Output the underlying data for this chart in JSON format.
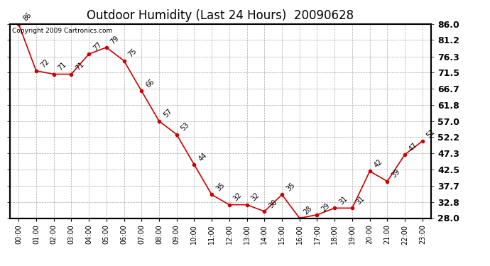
{
  "title": "Outdoor Humidity (Last 24 Hours)  20090628",
  "copyright": "Copyright 2009 Cartronics.com",
  "hours": [
    "00:00",
    "01:00",
    "02:00",
    "03:00",
    "04:00",
    "05:00",
    "06:00",
    "07:00",
    "08:00",
    "09:00",
    "10:00",
    "11:00",
    "12:00",
    "13:00",
    "14:00",
    "15:00",
    "16:00",
    "17:00",
    "18:00",
    "19:00",
    "20:00",
    "21:00",
    "22:00",
    "23:00"
  ],
  "values": [
    86,
    72,
    71,
    71,
    77,
    79,
    75,
    66,
    57,
    53,
    44,
    35,
    32,
    32,
    30,
    35,
    28,
    29,
    31,
    31,
    42,
    39,
    47,
    51
  ],
  "line_color": "#cc0000",
  "marker": "o",
  "marker_size": 3,
  "ylim": [
    28.0,
    86.0
  ],
  "yticks": [
    28.0,
    32.8,
    37.7,
    42.5,
    47.3,
    52.2,
    57.0,
    61.8,
    66.7,
    71.5,
    76.3,
    81.2,
    86.0
  ],
  "grid_color": "#aaaaaa",
  "bg_color": "#ffffff",
  "title_fontsize": 12,
  "xlabel_fontsize": 7,
  "ylabel_fontsize": 9,
  "annotation_fontsize": 7,
  "copyright_fontsize": 6.5
}
